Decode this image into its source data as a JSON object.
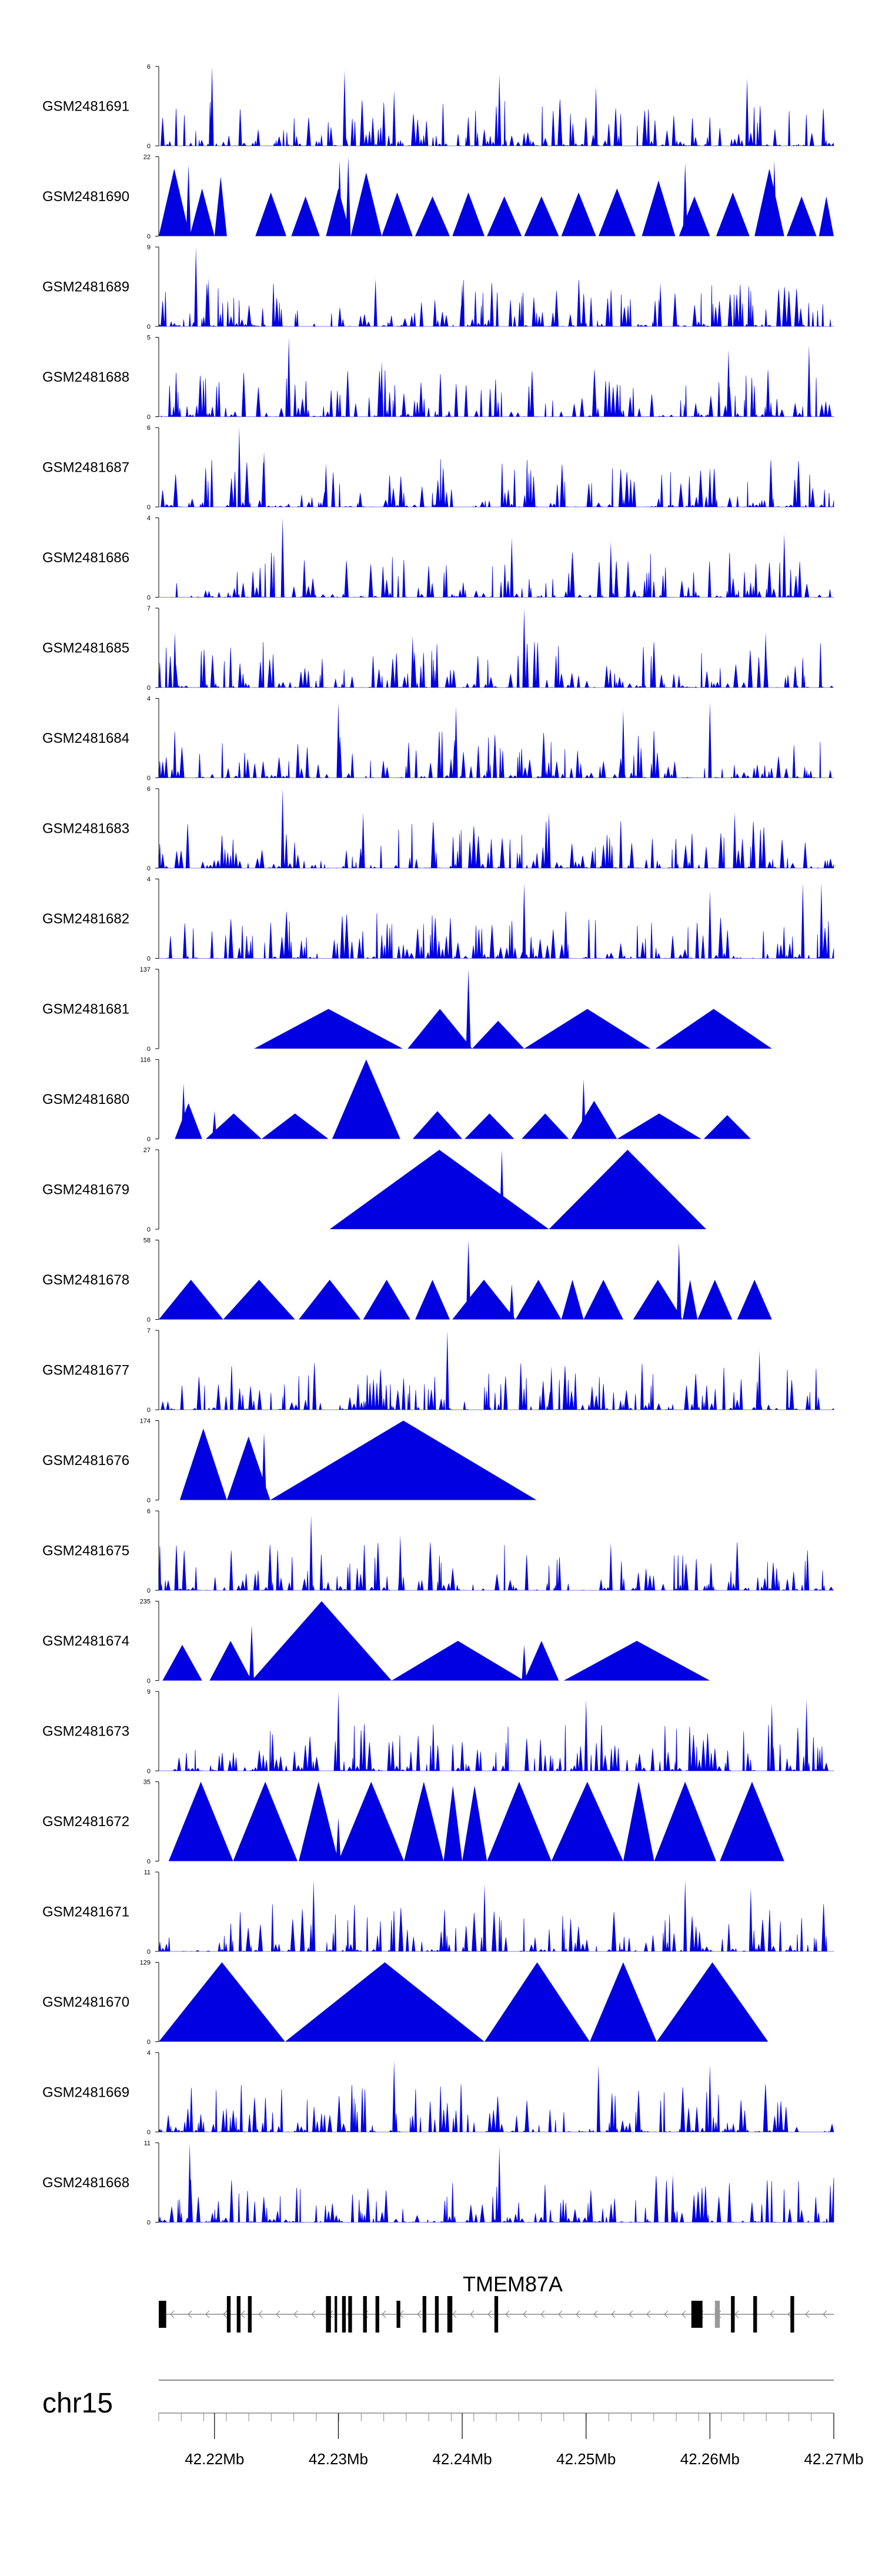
{
  "chart_data": {
    "type": "area",
    "colors": {
      "signal": "#0000e0",
      "axis": "#000000",
      "gene_exon": "#000000",
      "gene_exon_alt": "#999999",
      "gene_line": "#888888"
    },
    "x_range": [
      42.2155,
      42.27
    ],
    "x_unit": "Mb",
    "tracks": [
      {
        "name": "GSM2481691",
        "ymax": "6",
        "pattern": "dense",
        "seed": 11,
        "peaks": [
          [
            42.2198,
            1.0
          ],
          [
            42.2305,
            0.95
          ],
          [
            42.2345,
            0.7
          ],
          [
            42.243,
            0.9
          ],
          [
            42.2508,
            0.75
          ],
          [
            42.263,
            0.85
          ]
        ]
      },
      {
        "name": "GSM2481690",
        "ymax": "22",
        "pattern": "triangles",
        "segments": [
          [
            42.2155,
            42.218,
            0.85
          ],
          [
            42.218,
            42.22,
            0.6
          ],
          [
            42.22,
            42.221,
            0.75
          ],
          [
            42.221,
            42.2233,
            0.0
          ],
          [
            42.2233,
            42.2258,
            0.55
          ],
          [
            42.2262,
            42.2285,
            0.5
          ],
          [
            42.229,
            42.231,
            0.6
          ],
          [
            42.231,
            42.2335,
            0.8
          ],
          [
            42.2335,
            42.236,
            0.55
          ],
          [
            42.2362,
            42.239,
            0.5
          ],
          [
            42.2392,
            42.2418,
            0.55
          ],
          [
            42.242,
            42.2448,
            0.5
          ],
          [
            42.245,
            42.2478,
            0.5
          ],
          [
            42.248,
            42.2508,
            0.55
          ],
          [
            42.251,
            42.254,
            0.6
          ],
          [
            42.2545,
            42.2572,
            0.7
          ],
          [
            42.2575,
            42.26,
            0.5
          ],
          [
            42.2605,
            42.2632,
            0.55
          ],
          [
            42.2636,
            42.266,
            0.85
          ],
          [
            42.2662,
            42.2686,
            0.5
          ],
          [
            42.2688,
            42.27,
            0.5
          ]
        ],
        "spikes": [
          [
            42.2179,
            0.9
          ],
          [
            42.2301,
            0.95
          ],
          [
            42.2308,
            1.0
          ],
          [
            42.258,
            0.92
          ],
          [
            42.2652,
            0.95
          ]
        ]
      },
      {
        "name": "GSM2481689",
        "ymax": "9",
        "pattern": "dense",
        "seed": 23,
        "peaks": [
          [
            42.2185,
            1.0
          ],
          [
            42.2195,
            0.6
          ],
          [
            42.233,
            0.6
          ],
          [
            42.24,
            0.55
          ],
          [
            42.256,
            0.55
          ]
        ]
      },
      {
        "name": "GSM2481688",
        "ymax": "5",
        "pattern": "dense",
        "seed": 37,
        "peaks": [
          [
            42.226,
            1.0
          ],
          [
            42.2335,
            0.7
          ],
          [
            42.2615,
            0.85
          ],
          [
            42.268,
            0.9
          ]
        ]
      },
      {
        "name": "GSM2481687",
        "ymax": "6",
        "pattern": "dense",
        "seed": 41,
        "peaks": [
          [
            42.222,
            1.0
          ],
          [
            42.224,
            0.7
          ],
          [
            42.229,
            0.55
          ],
          [
            42.26,
            0.5
          ]
        ]
      },
      {
        "name": "GSM2481686",
        "ymax": "4",
        "pattern": "dense",
        "seed": 53,
        "peaks": [
          [
            42.2255,
            1.0
          ],
          [
            42.244,
            0.75
          ],
          [
            42.252,
            0.7
          ],
          [
            42.266,
            0.8
          ]
        ]
      },
      {
        "name": "GSM2481685",
        "ymax": "7",
        "pattern": "dense",
        "seed": 61,
        "peaks": [
          [
            42.2168,
            0.7
          ],
          [
            42.245,
            1.0
          ],
          [
            42.236,
            0.65
          ],
          [
            42.2645,
            0.7
          ]
        ]
      },
      {
        "name": "GSM2481684",
        "ymax": "4",
        "pattern": "dense",
        "seed": 71,
        "peaks": [
          [
            42.23,
            0.95
          ],
          [
            42.2395,
            0.9
          ],
          [
            42.253,
            0.85
          ],
          [
            42.26,
            0.95
          ]
        ]
      },
      {
        "name": "GSM2481683",
        "ymax": "6",
        "pattern": "dense",
        "seed": 83,
        "peaks": [
          [
            42.2255,
            1.0
          ],
          [
            42.232,
            0.7
          ],
          [
            42.247,
            0.7
          ],
          [
            42.262,
            0.7
          ]
        ]
      },
      {
        "name": "GSM2481682",
        "ymax": "4",
        "pattern": "dense",
        "seed": 97,
        "peaks": [
          [
            42.245,
            0.95
          ],
          [
            42.26,
            0.85
          ],
          [
            42.2675,
            0.95
          ],
          [
            42.269,
            0.95
          ]
        ]
      },
      {
        "name": "GSM2481681",
        "ymax": "137",
        "pattern": "triangles",
        "segments": [
          [
            42.2232,
            42.2352,
            0.5
          ],
          [
            42.2356,
            42.2408,
            0.5
          ],
          [
            42.2408,
            42.245,
            0.35
          ],
          [
            42.245,
            42.2552,
            0.5
          ],
          [
            42.2556,
            42.265,
            0.5
          ]
        ],
        "spikes": [
          [
            42.2405,
            1.0
          ]
        ]
      },
      {
        "name": "GSM2481680",
        "ymax": "116",
        "pattern": "triangles",
        "segments": [
          [
            42.2168,
            42.219,
            0.45
          ],
          [
            42.2193,
            42.2238,
            0.32
          ],
          [
            42.2238,
            42.2292,
            0.32
          ],
          [
            42.2295,
            42.235,
            1.0
          ],
          [
            42.236,
            42.24,
            0.35
          ],
          [
            42.2402,
            42.2442,
            0.32
          ],
          [
            42.2448,
            42.2486,
            0.32
          ],
          [
            42.2488,
            42.2525,
            0.48
          ],
          [
            42.2525,
            42.2593,
            0.32
          ],
          [
            42.2595,
            42.2633,
            0.3
          ]
        ],
        "spikes": [
          [
            42.2175,
            0.7
          ],
          [
            42.22,
            0.35
          ],
          [
            42.2498,
            0.75
          ]
        ]
      },
      {
        "name": "GSM2481679",
        "ymax": "27",
        "pattern": "triangles",
        "segments": [
          [
            42.2293,
            42.247,
            1.0
          ],
          [
            42.247,
            42.2597,
            1.0
          ]
        ],
        "spikes": [
          [
            42.2432,
            1.0
          ]
        ]
      },
      {
        "name": "GSM2481678",
        "ymax": "58",
        "pattern": "triangles",
        "segments": [
          [
            42.2155,
            42.2207,
            0.5
          ],
          [
            42.2207,
            42.2265,
            0.5
          ],
          [
            42.2268,
            42.2318,
            0.5
          ],
          [
            42.232,
            42.2358,
            0.5
          ],
          [
            42.2362,
            42.239,
            0.5
          ],
          [
            42.2392,
            42.2443,
            0.5
          ],
          [
            42.2443,
            42.248,
            0.5
          ],
          [
            42.248,
            42.2498,
            0.5
          ],
          [
            42.2498,
            42.253,
            0.5
          ],
          [
            42.2538,
            42.2578,
            0.5
          ],
          [
            42.2578,
            42.259,
            0.5
          ],
          [
            42.259,
            42.2618,
            0.5
          ],
          [
            42.2622,
            42.265,
            0.5
          ]
        ],
        "spikes": [
          [
            42.2405,
            1.0
          ],
          [
            42.244,
            0.45
          ],
          [
            42.2575,
            0.97
          ]
        ]
      },
      {
        "name": "GSM2481677",
        "ymax": "7",
        "pattern": "dense",
        "seed": 131,
        "peaks": [
          [
            42.2388,
            1.0
          ],
          [
            42.2472,
            0.55
          ],
          [
            42.264,
            0.75
          ]
        ]
      },
      {
        "name": "GSM2481676",
        "ymax": "174",
        "pattern": "triangles",
        "segments": [
          [
            42.2172,
            42.221,
            0.9
          ],
          [
            42.221,
            42.2245,
            0.8
          ],
          [
            42.2245,
            42.246,
            1.0
          ]
        ],
        "spikes": [
          [
            42.224,
            0.85
          ]
        ]
      },
      {
        "name": "GSM2481675",
        "ymax": "6",
        "pattern": "dense",
        "seed": 151,
        "peaks": [
          [
            42.2278,
            0.95
          ],
          [
            42.235,
            0.7
          ],
          [
            42.252,
            0.6
          ]
        ]
      },
      {
        "name": "GSM2481674",
        "ymax": "235",
        "pattern": "triangles",
        "segments": [
          [
            42.2158,
            42.219,
            0.45
          ],
          [
            42.2196,
            42.223,
            0.5
          ],
          [
            42.223,
            42.2343,
            1.0
          ],
          [
            42.2343,
            42.245,
            0.5
          ],
          [
            42.245,
            42.2478,
            0.5
          ],
          [
            42.2482,
            42.26,
            0.5
          ]
        ],
        "spikes": [
          [
            42.223,
            0.7
          ],
          [
            42.245,
            0.45
          ]
        ]
      },
      {
        "name": "GSM2481673",
        "ymax": "9",
        "pattern": "dense",
        "seed": 173,
        "peaks": [
          [
            42.23,
            1.0
          ],
          [
            42.25,
            0.9
          ],
          [
            42.265,
            0.85
          ],
          [
            42.2678,
            0.9
          ]
        ]
      },
      {
        "name": "GSM2481672",
        "ymax": "35",
        "pattern": "triangles",
        "segments": [
          [
            42.2163,
            42.2215,
            1.0
          ],
          [
            42.2215,
            42.2267,
            1.0
          ],
          [
            42.2268,
            42.23,
            1.0
          ],
          [
            42.23,
            42.2353,
            1.0
          ],
          [
            42.2353,
            42.2385,
            1.0
          ],
          [
            42.2385,
            42.24,
            0.95
          ],
          [
            42.24,
            42.242,
            0.95
          ],
          [
            42.242,
            42.2472,
            1.0
          ],
          [
            42.2472,
            42.253,
            1.0
          ],
          [
            42.253,
            42.2555,
            1.0
          ],
          [
            42.2555,
            42.2605,
            1.0
          ],
          [
            42.2608,
            42.266,
            1.0
          ]
        ],
        "spikes": [
          [
            42.23,
            0.55
          ],
          [
            42.245,
            0.85
          ]
        ]
      },
      {
        "name": "GSM2481671",
        "ymax": "11",
        "pattern": "dense",
        "seed": 191,
        "peaks": [
          [
            42.228,
            0.9
          ],
          [
            42.2418,
            0.85
          ],
          [
            42.258,
            0.9
          ],
          [
            42.2633,
            0.8
          ]
        ]
      },
      {
        "name": "GSM2481670",
        "ymax": "129",
        "pattern": "triangles",
        "segments": [
          [
            42.2155,
            42.2257,
            1.0
          ],
          [
            42.2257,
            42.2418,
            1.0
          ],
          [
            42.2418,
            42.2503,
            1.0
          ],
          [
            42.2503,
            42.2557,
            1.0
          ],
          [
            42.2557,
            42.2647,
            1.0
          ]
        ],
        "spikes": [
          [
            42.2598,
            0.6
          ]
        ]
      },
      {
        "name": "GSM2481669",
        "ymax": "4",
        "pattern": "dense",
        "seed": 211,
        "peaks": [
          [
            42.2345,
            0.9
          ],
          [
            42.251,
            0.85
          ],
          [
            42.26,
            0.85
          ]
        ]
      },
      {
        "name": "GSM2481668",
        "ymax": "11",
        "pattern": "dense",
        "seed": 223,
        "peaks": [
          [
            42.218,
            1.0
          ],
          [
            42.243,
            0.95
          ],
          [
            42.257,
            0.6
          ]
        ]
      }
    ],
    "gene": {
      "name": "TMEM87A",
      "strand": "-",
      "start": 42.2155,
      "end": 42.27,
      "exons": [
        [
          42.2155,
          42.2161,
          "thick"
        ],
        [
          42.221,
          42.2213,
          "line"
        ],
        [
          42.2218,
          42.2221,
          "line"
        ],
        [
          42.2227,
          42.223,
          "line"
        ],
        [
          42.229,
          42.2294,
          "line"
        ],
        [
          42.2297,
          42.2299,
          "line"
        ],
        [
          42.2303,
          42.2306,
          "line"
        ],
        [
          42.2308,
          42.2311,
          "line"
        ],
        [
          42.232,
          42.2323,
          "line"
        ],
        [
          42.233,
          42.2333,
          "line"
        ],
        [
          42.2347,
          42.235,
          "thick"
        ],
        [
          42.2368,
          42.2371,
          "line"
        ],
        [
          42.2378,
          42.2381,
          "line"
        ],
        [
          42.2388,
          42.2392,
          "line"
        ],
        [
          42.2426,
          42.2429,
          "line"
        ],
        [
          42.2585,
          42.2594,
          "thick"
        ],
        [
          42.2604,
          42.2608,
          "alt"
        ],
        [
          42.2617,
          42.262,
          "line"
        ],
        [
          42.2635,
          42.2638,
          "line"
        ],
        [
          42.2665,
          42.2668,
          "line"
        ]
      ]
    },
    "chromosome": "chr15",
    "axis_ticks": [
      "42.22Mb",
      "42.23Mb",
      "42.24Mb",
      "42.25Mb",
      "42.26Mb",
      "42.27Mb"
    ],
    "axis_tick_values": [
      42.22,
      42.23,
      42.24,
      42.25,
      42.26,
      42.27
    ]
  }
}
